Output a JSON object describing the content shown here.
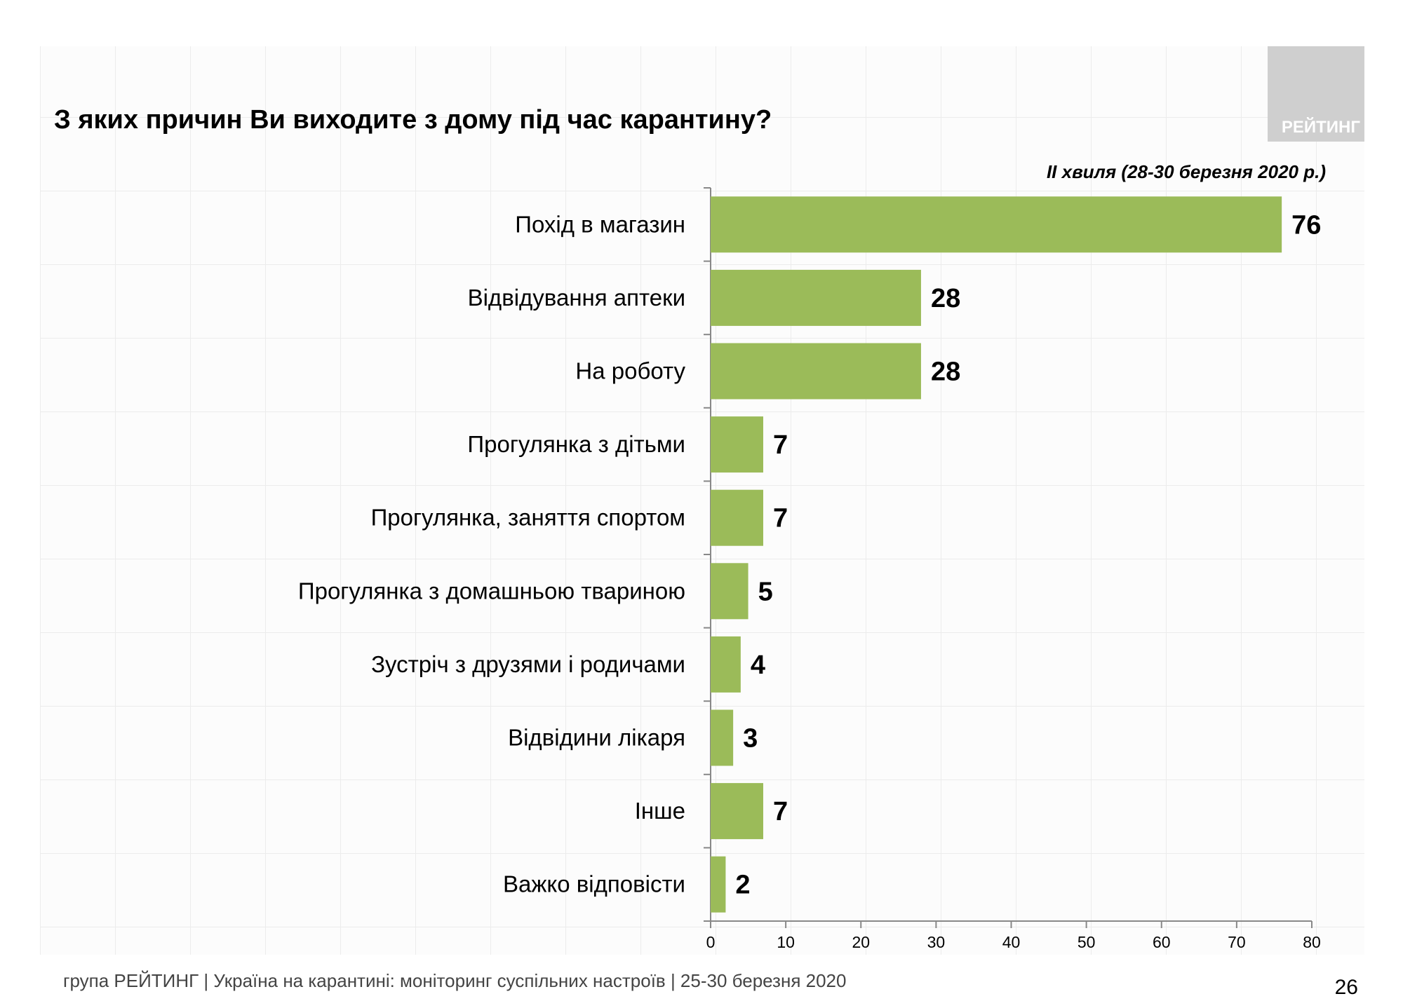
{
  "logo_text": "РЕЙТИНГ",
  "title": "З яких причин Ви виходите з дому під час карантину?",
  "subtitle": "ІІ хвиля (28-30 березня 2020 р.)",
  "footer": {
    "text": "група РЕЙТИНГ  |  Україна на карантині: моніторинг суспільних настроїв  |  25-30 березня 2020",
    "page": "26"
  },
  "chart_data": {
    "type": "bar",
    "orientation": "horizontal",
    "title": "З яких причин Ви виходите з дому під час карантину?",
    "subtitle": "ІІ хвиля (28-30 березня 2020 р.)",
    "categories": [
      "Похід в магазин",
      "Відвідування аптеки",
      "На роботу",
      "Прогулянка з дітьми",
      "Прогулянка, заняття спортом",
      "Прогулянка з домашньою твариною",
      "Зустріч з друзями і родичами",
      "Відвідини лікаря",
      "Інше",
      "Важко відповісти"
    ],
    "values": [
      76,
      28,
      28,
      7,
      7,
      5,
      4,
      3,
      7,
      2
    ],
    "xlim": [
      0,
      80
    ],
    "xticks": [
      "0",
      "10",
      "20",
      "30",
      "40",
      "50",
      "60",
      "70",
      "80"
    ],
    "bar_color": "#9BBB59",
    "grid": false,
    "data_labels": true
  }
}
